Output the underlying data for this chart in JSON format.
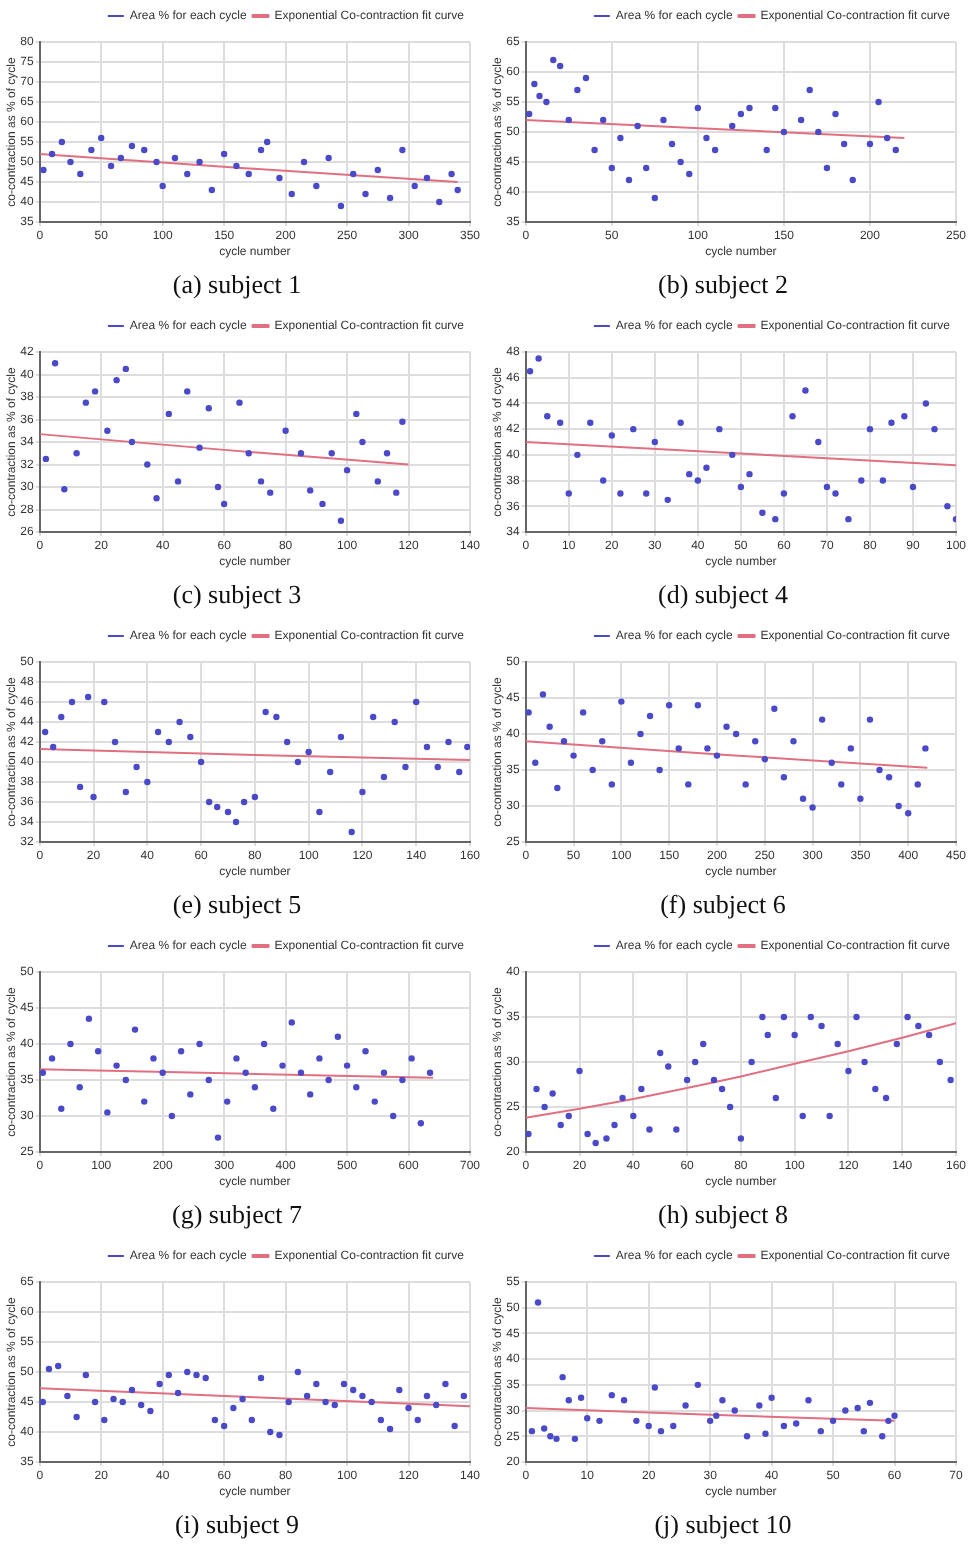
{
  "chart_data": [
    {
      "type": "scatter",
      "title": "(a) subject 1",
      "xlabel": "cycle number",
      "ylabel": "co-contraction as % of cycle",
      "xlim": [
        0,
        350
      ],
      "xticks": [
        0,
        50,
        100,
        150,
        200,
        250,
        300,
        350
      ],
      "ylim": [
        35,
        80
      ],
      "yticks": [
        35,
        40,
        45,
        50,
        55,
        60,
        65,
        70,
        75,
        80
      ],
      "grid": true,
      "legend": "top right",
      "series": [
        {
          "name": "Area % for each cycle",
          "color": "#4a4ac8",
          "marker": "circle",
          "x": [
            3,
            10,
            18,
            25,
            33,
            42,
            50,
            58,
            66,
            75,
            85,
            95,
            100,
            110,
            120,
            130,
            140,
            150,
            160,
            170,
            180,
            185,
            195,
            205,
            215,
            225,
            235,
            245,
            255,
            265,
            275,
            285,
            295,
            305,
            315,
            325,
            335,
            340
          ],
          "values": [
            48,
            52,
            55,
            50,
            47,
            53,
            56,
            49,
            51,
            54,
            53,
            50,
            44,
            51,
            47,
            50,
            43,
            52,
            49,
            47,
            53,
            55,
            46,
            42,
            50,
            44,
            51,
            39,
            47,
            42,
            48,
            41,
            53,
            44,
            46,
            40,
            47,
            43
          ]
        },
        {
          "name": "Exponential Co-contraction fit curve",
          "type": "line",
          "color": "#e07080",
          "marker": "none",
          "x": [
            0,
            170,
            340
          ],
          "values": [
            52,
            48.4,
            45
          ]
        }
      ]
    },
    {
      "type": "scatter",
      "title": "(b) subject 2",
      "xlabel": "cycle number",
      "ylabel": "co-contraction as % of cycle",
      "xlim": [
        0,
        250
      ],
      "xticks": [
        0,
        50,
        100,
        150,
        200,
        250
      ],
      "ylim": [
        35,
        65
      ],
      "yticks": [
        35,
        40,
        45,
        50,
        55,
        60,
        65
      ],
      "grid": true,
      "legend": "top right",
      "series": [
        {
          "name": "Area % for each cycle",
          "color": "#4a4ac8",
          "marker": "circle",
          "x": [
            2,
            5,
            8,
            12,
            16,
            20,
            25,
            30,
            35,
            40,
            45,
            50,
            55,
            60,
            65,
            70,
            75,
            80,
            85,
            90,
            95,
            100,
            105,
            110,
            120,
            125,
            130,
            140,
            145,
            150,
            160,
            165,
            170,
            175,
            180,
            185,
            190,
            200,
            205,
            210,
            215
          ],
          "values": [
            53,
            58,
            56,
            55,
            62,
            61,
            52,
            57,
            59,
            47,
            52,
            44,
            49,
            42,
            51,
            44,
            39,
            52,
            48,
            45,
            43,
            54,
            49,
            47,
            51,
            53,
            54,
            47,
            54,
            50,
            52,
            57,
            50,
            44,
            53,
            48,
            42,
            48,
            55,
            49,
            47
          ]
        },
        {
          "name": "Exponential Co-contraction fit curve",
          "type": "line",
          "color": "#e07080",
          "marker": "none",
          "x": [
            0,
            110,
            220
          ],
          "values": [
            52,
            50.5,
            49
          ]
        }
      ]
    },
    {
      "type": "scatter",
      "title": "(c) subject 3",
      "xlabel": "cycle number",
      "ylabel": "co-contraction as % of cycle",
      "xlim": [
        0,
        140
      ],
      "xticks": [
        0,
        20,
        40,
        60,
        80,
        100,
        120,
        140
      ],
      "ylim": [
        26,
        42
      ],
      "yticks": [
        26,
        28,
        30,
        32,
        34,
        36,
        38,
        40,
        42
      ],
      "grid": true,
      "legend": "top right",
      "series": [
        {
          "name": "Area % for each cycle",
          "color": "#4a4ac8",
          "marker": "circle",
          "x": [
            2,
            5,
            8,
            12,
            15,
            18,
            22,
            25,
            28,
            30,
            35,
            38,
            42,
            45,
            48,
            52,
            55,
            58,
            60,
            65,
            68,
            72,
            75,
            80,
            85,
            88,
            92,
            95,
            98,
            100,
            103,
            105,
            110,
            113,
            116,
            118
          ],
          "values": [
            32.5,
            41,
            29.8,
            33,
            37.5,
            38.5,
            35,
            39.5,
            40.5,
            34,
            32,
            29,
            36.5,
            30.5,
            38.5,
            33.5,
            37,
            30,
            28.5,
            37.5,
            33,
            30.5,
            29.5,
            35,
            33,
            29.7,
            28.5,
            33,
            27,
            31.5,
            36.5,
            34,
            30.5,
            33,
            29.5,
            35.8
          ]
        },
        {
          "name": "Exponential Co-contraction fit curve",
          "type": "line",
          "color": "#e07080",
          "marker": "none",
          "x": [
            0,
            60,
            120
          ],
          "values": [
            34.7,
            33.3,
            32
          ]
        }
      ]
    },
    {
      "type": "scatter",
      "title": "(d) subject 4",
      "xlabel": "cycle number",
      "ylabel": "co-contraction as % of cycle",
      "xlim": [
        0,
        100
      ],
      "xticks": [
        0,
        10,
        20,
        30,
        40,
        50,
        60,
        70,
        80,
        90,
        100
      ],
      "ylim": [
        34,
        48
      ],
      "yticks": [
        34,
        36,
        38,
        40,
        42,
        44,
        46,
        48
      ],
      "grid": true,
      "legend": "top right",
      "series": [
        {
          "name": "Area % for each cycle",
          "color": "#4a4ac8",
          "marker": "circle",
          "x": [
            1,
            3,
            5,
            8,
            10,
            12,
            15,
            18,
            20,
            22,
            25,
            28,
            30,
            33,
            36,
            38,
            40,
            42,
            45,
            48,
            50,
            52,
            55,
            58,
            60,
            62,
            65,
            68,
            70,
            72,
            75,
            78,
            80,
            83,
            85,
            88,
            90,
            93,
            95,
            98,
            100
          ],
          "values": [
            46.5,
            47.5,
            43,
            42.5,
            37,
            40,
            42.5,
            38,
            41.5,
            37,
            42,
            37,
            41,
            36.5,
            42.5,
            38.5,
            38,
            39,
            42,
            40,
            37.5,
            38.5,
            35.5,
            35,
            37,
            43,
            45,
            41,
            37.5,
            37,
            35,
            38,
            42,
            38,
            42.5,
            43,
            37.5,
            44,
            42,
            36,
            35
          ]
        },
        {
          "name": "Exponential Co-contraction fit curve",
          "type": "line",
          "color": "#e07080",
          "marker": "none",
          "x": [
            0,
            50,
            100
          ],
          "values": [
            41,
            40.1,
            39.2
          ]
        }
      ]
    },
    {
      "type": "scatter",
      "title": "(e) subject 5",
      "xlabel": "cycle number",
      "ylabel": "co-contraction as % of cycle",
      "xlim": [
        0,
        160
      ],
      "xticks": [
        0,
        20,
        40,
        60,
        80,
        100,
        120,
        140,
        160
      ],
      "ylim": [
        32,
        50
      ],
      "yticks": [
        32,
        34,
        36,
        38,
        40,
        42,
        44,
        46,
        48,
        50
      ],
      "grid": true,
      "legend": "top right",
      "series": [
        {
          "name": "Area % for each cycle",
          "color": "#4a4ac8",
          "marker": "circle",
          "x": [
            2,
            5,
            8,
            12,
            15,
            18,
            20,
            24,
            28,
            32,
            36,
            40,
            44,
            48,
            52,
            56,
            60,
            63,
            66,
            70,
            73,
            76,
            80,
            84,
            88,
            92,
            96,
            100,
            104,
            108,
            112,
            116,
            120,
            124,
            128,
            132,
            136,
            140,
            144,
            148,
            152,
            156,
            159
          ],
          "values": [
            43,
            41.5,
            44.5,
            46,
            37.5,
            46.5,
            36.5,
            46,
            42,
            37,
            39.5,
            38,
            43,
            42,
            44,
            42.5,
            40,
            36,
            35.5,
            35,
            34,
            36,
            36.5,
            45,
            44.5,
            42,
            40,
            41,
            35,
            39,
            42.5,
            33,
            37,
            44.5,
            38.5,
            44,
            39.5,
            46,
            41.5,
            39.5,
            42,
            39,
            41.5
          ]
        },
        {
          "name": "Exponential Co-contraction fit curve",
          "type": "line",
          "color": "#e07080",
          "marker": "none",
          "x": [
            0,
            80,
            160
          ],
          "values": [
            41.3,
            40.7,
            40.2
          ]
        }
      ]
    },
    {
      "type": "scatter",
      "title": "(f) subject 6",
      "xlabel": "cycle number",
      "ylabel": "co-contraction as % of cycle",
      "xlim": [
        0,
        450
      ],
      "xticks": [
        0,
        50,
        100,
        150,
        200,
        250,
        300,
        350,
        400,
        450
      ],
      "ylim": [
        25,
        50
      ],
      "yticks": [
        25,
        30,
        35,
        40,
        45,
        50
      ],
      "grid": true,
      "legend": "top right",
      "series": [
        {
          "name": "Area % for each cycle",
          "color": "#4a4ac8",
          "marker": "circle",
          "x": [
            3,
            10,
            18,
            25,
            33,
            40,
            50,
            60,
            70,
            80,
            90,
            100,
            110,
            120,
            130,
            140,
            150,
            160,
            170,
            180,
            190,
            200,
            210,
            220,
            230,
            240,
            250,
            260,
            270,
            280,
            290,
            300,
            310,
            320,
            330,
            340,
            350,
            360,
            370,
            380,
            390,
            400,
            410,
            418
          ],
          "values": [
            43,
            36,
            45.5,
            41,
            32.5,
            39,
            37,
            43,
            35,
            39,
            33,
            44.5,
            36,
            40,
            42.5,
            35,
            44,
            38,
            33,
            44,
            38,
            37,
            41,
            40,
            33,
            39,
            36.5,
            43.5,
            34,
            39,
            31,
            29.8,
            42,
            36,
            33,
            38,
            31,
            42,
            35,
            34,
            30,
            29,
            33,
            38
          ]
        },
        {
          "name": "Exponential Co-contraction fit curve",
          "type": "line",
          "color": "#e07080",
          "marker": "none",
          "x": [
            0,
            210,
            420
          ],
          "values": [
            39,
            37.1,
            35.3
          ]
        }
      ]
    },
    {
      "type": "scatter",
      "title": "(g) subject 7",
      "xlabel": "cycle number",
      "ylabel": "co-contraction as % of cycle",
      "xlim": [
        0,
        700
      ],
      "xticks": [
        0,
        100,
        200,
        300,
        400,
        500,
        600,
        700
      ],
      "ylim": [
        25,
        50
      ],
      "yticks": [
        25,
        30,
        35,
        40,
        45,
        50
      ],
      "grid": true,
      "legend": "top right",
      "series": [
        {
          "name": "Area % for each cycle",
          "color": "#4a4ac8",
          "marker": "circle",
          "x": [
            5,
            20,
            35,
            50,
            65,
            80,
            95,
            110,
            125,
            140,
            155,
            170,
            185,
            200,
            215,
            230,
            245,
            260,
            275,
            290,
            305,
            320,
            335,
            350,
            365,
            380,
            395,
            410,
            425,
            440,
            455,
            470,
            485,
            500,
            515,
            530,
            545,
            560,
            575,
            590,
            605,
            620,
            635
          ],
          "values": [
            36,
            38,
            31,
            40,
            34,
            43.5,
            39,
            30.5,
            37,
            35,
            42,
            32,
            38,
            36,
            30,
            39,
            33,
            40,
            35,
            27,
            32,
            38,
            36,
            34,
            40,
            31,
            37,
            43,
            36,
            33,
            38,
            35,
            41,
            37,
            34,
            39,
            32,
            36,
            30,
            35,
            38,
            29,
            36
          ]
        },
        {
          "name": "Exponential Co-contraction fit curve",
          "type": "line",
          "color": "#e07080",
          "marker": "none",
          "x": [
            0,
            320,
            640
          ],
          "values": [
            36.5,
            35.9,
            35.3
          ]
        }
      ]
    },
    {
      "type": "scatter",
      "title": "(h) subject 8",
      "xlabel": "cycle number",
      "ylabel": "co-contraction as % of cycle",
      "xlim": [
        0,
        160
      ],
      "xticks": [
        0,
        20,
        40,
        60,
        80,
        100,
        120,
        140,
        160
      ],
      "ylim": [
        20,
        40
      ],
      "yticks": [
        20,
        25,
        30,
        35,
        40
      ],
      "grid": true,
      "legend": "top right",
      "series": [
        {
          "name": "Area % for each cycle",
          "color": "#4a4ac8",
          "marker": "circle",
          "x": [
            1,
            4,
            7,
            10,
            13,
            16,
            20,
            23,
            26,
            30,
            33,
            36,
            40,
            43,
            46,
            50,
            53,
            56,
            60,
            63,
            66,
            70,
            73,
            76,
            80,
            84,
            88,
            90,
            93,
            96,
            100,
            103,
            106,
            110,
            113,
            116,
            120,
            123,
            126,
            130,
            134,
            138,
            142,
            146,
            150,
            154,
            158
          ],
          "values": [
            22,
            27,
            25,
            26.5,
            23,
            24,
            29,
            22,
            21,
            21.5,
            23,
            26,
            24,
            27,
            22.5,
            31,
            29.5,
            22.5,
            28,
            30,
            32,
            28,
            27,
            25,
            21.5,
            30,
            35,
            33,
            26,
            35,
            33,
            24,
            35,
            34,
            24,
            32,
            29,
            35,
            30,
            27,
            26,
            32,
            35,
            34,
            33,
            30,
            28
          ]
        },
        {
          "name": "Exponential Co-contraction fit curve",
          "type": "line",
          "color": "#e07080",
          "marker": "none",
          "x": [
            0,
            20,
            40,
            60,
            80,
            100,
            120,
            140,
            160
          ],
          "values": [
            23.8,
            24.8,
            25.9,
            27.1,
            28.4,
            29.8,
            31.2,
            32.7,
            34.3
          ]
        }
      ]
    },
    {
      "type": "scatter",
      "title": "(i) subject 9",
      "xlabel": "cycle number",
      "ylabel": "co-contraction as % of cycle",
      "xlim": [
        0,
        140
      ],
      "xticks": [
        0,
        20,
        40,
        60,
        80,
        100,
        120,
        140
      ],
      "ylim": [
        35,
        65
      ],
      "yticks": [
        35,
        40,
        45,
        50,
        55,
        60,
        65
      ],
      "grid": true,
      "legend": "top right",
      "series": [
        {
          "name": "Area % for each cycle",
          "color": "#4a4ac8",
          "marker": "circle",
          "x": [
            1,
            3,
            6,
            9,
            12,
            15,
            18,
            21,
            24,
            27,
            30,
            33,
            36,
            39,
            42,
            45,
            48,
            51,
            54,
            57,
            60,
            63,
            66,
            69,
            72,
            75,
            78,
            81,
            84,
            87,
            90,
            93,
            96,
            99,
            102,
            105,
            108,
            111,
            114,
            117,
            120,
            123,
            126,
            129,
            132,
            135,
            138
          ],
          "values": [
            45,
            50.5,
            51,
            46,
            42.5,
            49.5,
            45,
            42,
            45.5,
            45,
            47,
            44.5,
            43.5,
            48,
            49.5,
            46.5,
            50,
            49.5,
            49,
            42,
            41,
            44,
            45.5,
            42,
            49,
            40,
            39.5,
            45,
            50,
            46,
            48,
            45,
            44.5,
            48,
            47,
            46,
            45,
            42,
            40.5,
            47,
            44,
            42,
            46,
            44.5,
            48,
            41,
            46
          ]
        },
        {
          "name": "Exponential Co-contraction fit curve",
          "type": "line",
          "color": "#e07080",
          "marker": "none",
          "x": [
            0,
            70,
            140
          ],
          "values": [
            47.3,
            45.8,
            44.3
          ]
        }
      ]
    },
    {
      "type": "scatter",
      "title": "(j) subject 10",
      "xlabel": "cycle number",
      "ylabel": "co-contraction as % of cycle",
      "xlim": [
        0,
        70
      ],
      "xticks": [
        0,
        10,
        20,
        30,
        40,
        50,
        60,
        70
      ],
      "ylim": [
        20,
        55
      ],
      "yticks": [
        20,
        25,
        30,
        35,
        40,
        45,
        50,
        55
      ],
      "grid": true,
      "legend": "top right",
      "series": [
        {
          "name": "Area % for each cycle",
          "color": "#4a4ac8",
          "marker": "circle",
          "x": [
            1,
            2,
            3,
            4,
            5,
            6,
            7,
            8,
            9,
            10,
            12,
            14,
            16,
            18,
            20,
            21,
            22,
            24,
            26,
            28,
            30,
            31,
            32,
            34,
            36,
            38,
            39,
            40,
            42,
            44,
            46,
            48,
            50,
            52,
            54,
            55,
            56,
            58,
            59,
            60
          ],
          "values": [
            26,
            51,
            26.5,
            25,
            24.5,
            36.5,
            32,
            24.5,
            32.5,
            28.5,
            28,
            33,
            32,
            28,
            27,
            34.5,
            26,
            27,
            31,
            35,
            28,
            29,
            32,
            30,
            25,
            31,
            25.5,
            32.5,
            27,
            27.5,
            32,
            26,
            28,
            30,
            30.5,
            26,
            31.5,
            25,
            28,
            29
          ]
        },
        {
          "name": "Exponential Co-contraction fit curve",
          "type": "line",
          "color": "#e07080",
          "marker": "none",
          "x": [
            0,
            30,
            60
          ],
          "values": [
            30.5,
            29.2,
            28
          ]
        }
      ]
    }
  ]
}
